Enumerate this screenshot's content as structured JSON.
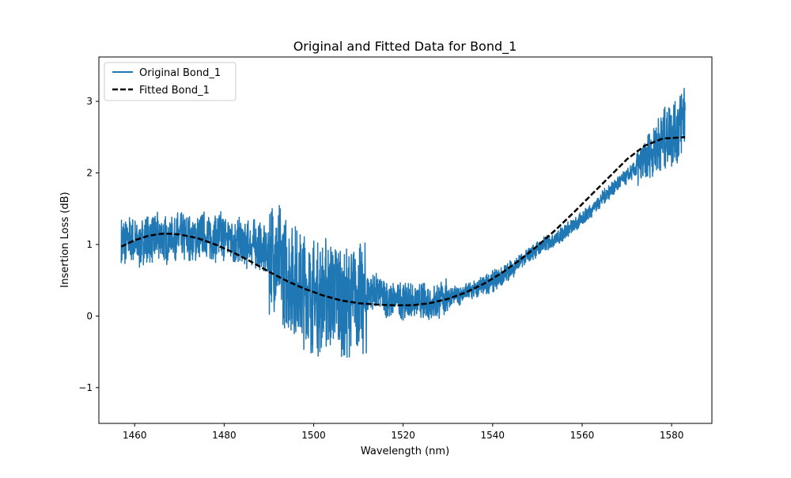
{
  "chart_data": {
    "type": "line",
    "title": "Original and Fitted Data for Bond_1",
    "xlabel": "Wavelength (nm)",
    "ylabel": "Insertion Loss (dB)",
    "xlim": [
      1452,
      1589
    ],
    "ylim": [
      -1.5,
      3.62
    ],
    "xticks": [
      1460,
      1480,
      1500,
      1520,
      1540,
      1560,
      1580
    ],
    "yticks": [
      -1,
      0,
      1,
      2,
      3
    ],
    "ytick_labels": [
      "−1",
      "0",
      "1",
      "2",
      "3"
    ],
    "legend_position": "top-left",
    "grid": false,
    "series": [
      {
        "name": "Original Bond_1",
        "style": "solid",
        "color": "#1f77b4",
        "x": [
          1457,
          1459,
          1461,
          1463,
          1465,
          1467,
          1469,
          1471,
          1473,
          1475,
          1477,
          1479,
          1481,
          1483,
          1485,
          1487,
          1489,
          1491,
          1493,
          1495,
          1497,
          1499,
          1501,
          1503,
          1505,
          1507,
          1509,
          1511,
          1513,
          1515,
          1517,
          1519,
          1521,
          1523,
          1525,
          1527,
          1529,
          1531,
          1533,
          1535,
          1537,
          1539,
          1541,
          1543,
          1545,
          1547,
          1549,
          1551,
          1553,
          1555,
          1557,
          1559,
          1561,
          1563,
          1565,
          1567,
          1569,
          1571,
          1573,
          1575,
          1577,
          1579,
          1581,
          1583
        ],
        "values": [
          1.02,
          1.05,
          1.0,
          1.08,
          1.1,
          1.05,
          1.12,
          1.1,
          1.05,
          1.15,
          1.08,
          1.12,
          1.1,
          1.05,
          1.0,
          1.02,
          0.9,
          0.8,
          0.7,
          0.55,
          0.4,
          0.3,
          0.25,
          0.35,
          0.3,
          0.15,
          0.3,
          0.25,
          0.35,
          0.3,
          0.2,
          0.25,
          0.2,
          0.22,
          0.18,
          0.2,
          0.25,
          0.28,
          0.3,
          0.35,
          0.4,
          0.45,
          0.52,
          0.6,
          0.7,
          0.8,
          0.9,
          0.98,
          1.05,
          1.12,
          1.22,
          1.3,
          1.42,
          1.55,
          1.68,
          1.8,
          1.9,
          2.0,
          2.1,
          2.25,
          2.4,
          2.5,
          2.6,
          2.85
        ]
      },
      {
        "name": "Fitted Bond_1",
        "style": "dashed",
        "color": "#000000",
        "x": [
          1457,
          1460,
          1463,
          1466,
          1468,
          1470,
          1474,
          1478,
          1482,
          1486,
          1490,
          1494,
          1498,
          1502,
          1506,
          1510,
          1514,
          1518,
          1522,
          1526,
          1530,
          1534,
          1538,
          1542,
          1546,
          1550,
          1554,
          1558,
          1562,
          1566,
          1570,
          1574,
          1578,
          1583
        ],
        "values": [
          0.97,
          1.06,
          1.12,
          1.15,
          1.15,
          1.14,
          1.09,
          1.0,
          0.89,
          0.76,
          0.62,
          0.49,
          0.38,
          0.29,
          0.22,
          0.18,
          0.16,
          0.15,
          0.15,
          0.18,
          0.24,
          0.33,
          0.45,
          0.6,
          0.78,
          0.98,
          1.2,
          1.44,
          1.69,
          1.94,
          2.19,
          2.38,
          2.48,
          2.5
        ]
      }
    ]
  }
}
